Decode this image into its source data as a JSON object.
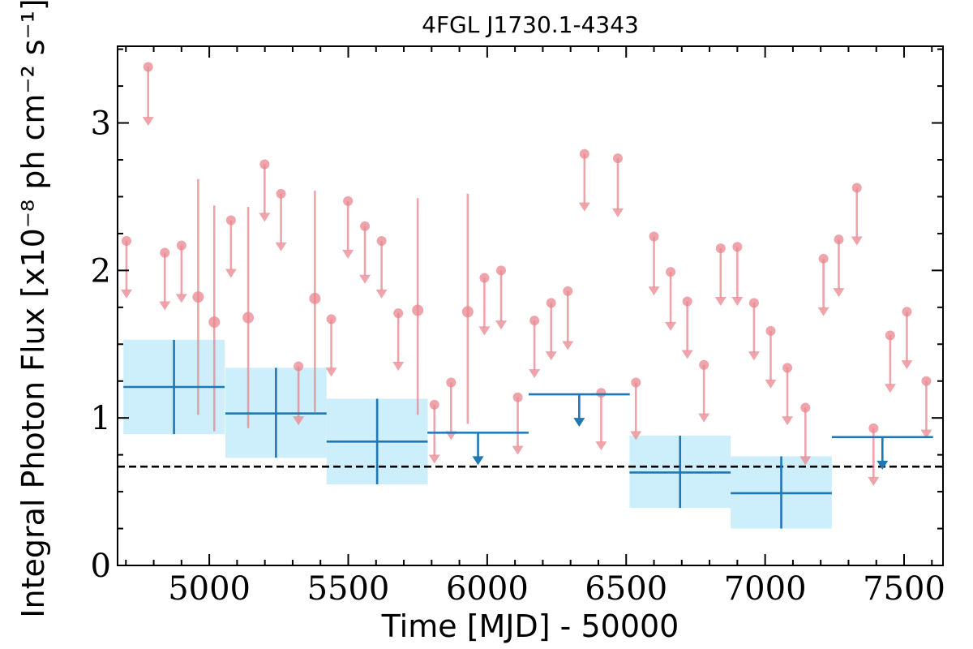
{
  "chart_data": {
    "type": "scatter",
    "title": "4FGL J1730.1-4343",
    "xlabel": "Time [MJD] - 50000",
    "ylabel": "Integral Photon Flux [x10⁻⁸ ph cm⁻² s⁻¹]",
    "xlim": [
      4670,
      7640
    ],
    "ylim": [
      0,
      3.52
    ],
    "xticks": [
      5000,
      5500,
      6000,
      6500,
      7000,
      7500
    ],
    "yticks": [
      0,
      1,
      2,
      3
    ],
    "tick_labels_x": [
      "5000",
      "5500",
      "6000",
      "6500",
      "7000",
      "7500"
    ],
    "tick_labels_y": [
      "0",
      "1",
      "2",
      "3"
    ],
    "grid": false,
    "reference_level": 0.67,
    "colors": {
      "short_bins": "#e8868e",
      "long_bins": "#1f77b4",
      "band_fill": "#cdeefb",
      "reference_line": "#000000"
    },
    "series": [
      {
        "kind": "short-bin-upper-limits",
        "points": [
          [
            4702,
            2.2
          ],
          [
            4780,
            3.38
          ],
          [
            4840,
            2.12
          ],
          [
            4900,
            2.17
          ],
          [
            5078,
            2.34
          ],
          [
            5199,
            2.72
          ],
          [
            5258,
            2.52
          ],
          [
            5321,
            1.35
          ],
          [
            5439,
            1.67
          ],
          [
            5499,
            2.47
          ],
          [
            5560,
            2.3
          ],
          [
            5620,
            2.2
          ],
          [
            5680,
            1.71
          ],
          [
            5810,
            1.09
          ],
          [
            5870,
            1.24
          ],
          [
            5990,
            1.95
          ],
          [
            6050,
            2.0
          ],
          [
            6110,
            1.14
          ],
          [
            6170,
            1.66
          ],
          [
            6230,
            1.78
          ],
          [
            6290,
            1.86
          ],
          [
            6350,
            2.79
          ],
          [
            6410,
            1.17
          ],
          [
            6470,
            2.76
          ],
          [
            6535,
            1.24
          ],
          [
            6600,
            2.23
          ],
          [
            6660,
            1.99
          ],
          [
            6720,
            1.79
          ],
          [
            6780,
            1.36
          ],
          [
            6840,
            2.15
          ],
          [
            6900,
            2.16
          ],
          [
            6960,
            1.78
          ],
          [
            7020,
            1.59
          ],
          [
            7080,
            1.34
          ],
          [
            7145,
            1.07
          ],
          [
            7210,
            2.08
          ],
          [
            7265,
            2.21
          ],
          [
            7330,
            2.56
          ],
          [
            7390,
            0.93
          ],
          [
            7450,
            1.56
          ],
          [
            7510,
            1.72
          ],
          [
            7580,
            1.25
          ]
        ],
        "arrow_tips": [
          1.81,
          2.98,
          1.73,
          1.78,
          1.95,
          2.33,
          2.13,
          0.95,
          1.28,
          2.08,
          1.91,
          1.81,
          1.32,
          0.69,
          0.85,
          1.56,
          1.6,
          0.75,
          1.27,
          1.39,
          1.46,
          2.4,
          0.78,
          2.36,
          0.85,
          1.83,
          1.59,
          1.4,
          0.97,
          1.76,
          1.76,
          1.39,
          1.2,
          0.95,
          0.68,
          1.69,
          1.82,
          2.17,
          0.54,
          1.17,
          1.33,
          0.86
        ]
      },
      {
        "kind": "short-bin-detections",
        "points": [
          [
            4960,
            1.82
          ],
          [
            5018,
            1.65
          ],
          [
            5140,
            1.68
          ],
          [
            5380,
            1.81
          ],
          [
            5750,
            1.73
          ],
          [
            5930,
            1.72
          ]
        ],
        "error_low": [
          1.02,
          0.91,
          0.93,
          1.04,
          1.02,
          0.96
        ],
        "error_high": [
          2.62,
          2.44,
          2.43,
          2.54,
          2.49,
          2.52
        ]
      },
      {
        "kind": "long-bin-detections",
        "x_center": [
          4873,
          5240,
          5604,
          6694,
          7058
        ],
        "half_width": [
          182,
          182,
          182,
          182,
          182
        ],
        "values": [
          1.21,
          1.03,
          0.84,
          0.63,
          0.49
        ],
        "error_low": [
          0.89,
          0.73,
          0.55,
          0.39,
          0.25
        ],
        "error_high": [
          1.53,
          1.34,
          1.13,
          0.88,
          0.74
        ]
      },
      {
        "kind": "long-bin-upper-limits",
        "x_center": [
          5967,
          6331,
          7422
        ],
        "half_width": [
          182,
          182,
          182
        ],
        "values": [
          0.9,
          1.16,
          0.87
        ],
        "arrow_tips": [
          0.68,
          0.94,
          0.65
        ]
      }
    ]
  }
}
